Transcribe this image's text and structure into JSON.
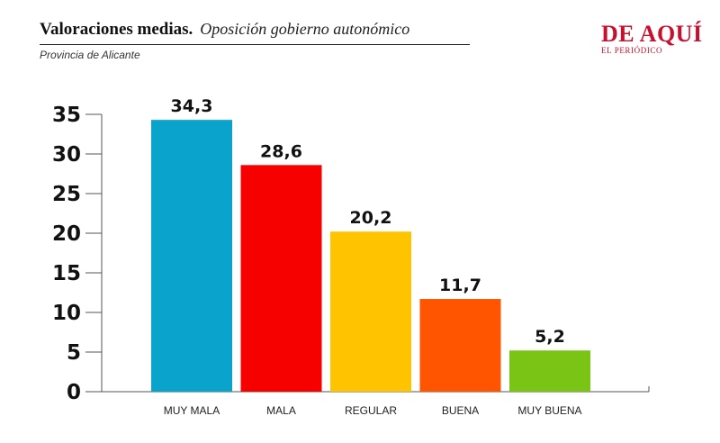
{
  "header": {
    "title": "Valoraciones medias.",
    "title_detail": "Oposición gobierno autonómico",
    "subtitle": "Provincia de Alicante"
  },
  "brand": {
    "name": "DE AQUÍ",
    "tagline": "EL PERIÓDICO",
    "color": "#c8102e"
  },
  "chart_data": {
    "type": "bar",
    "title": "Valoraciones medias. Oposición gobierno autonómico",
    "subtitle": "Provincia de Alicante",
    "categories": [
      "MUY MALA",
      "MALA",
      "REGULAR",
      "BUENA",
      "MUY BUENA"
    ],
    "values": [
      34.3,
      28.6,
      20.2,
      11.7,
      5.2
    ],
    "value_labels": [
      "34,3",
      "28,6",
      "20,2",
      "11,7",
      "5,2"
    ],
    "colors": [
      "#0aa3cc",
      "#f70000",
      "#ffc300",
      "#ff5400",
      "#7ac416"
    ],
    "yticks": [
      0,
      5,
      10,
      15,
      20,
      25,
      30,
      35
    ],
    "ylim": [
      0,
      35
    ],
    "xlabel": "",
    "ylabel": "",
    "grid": false,
    "legend": "none"
  }
}
